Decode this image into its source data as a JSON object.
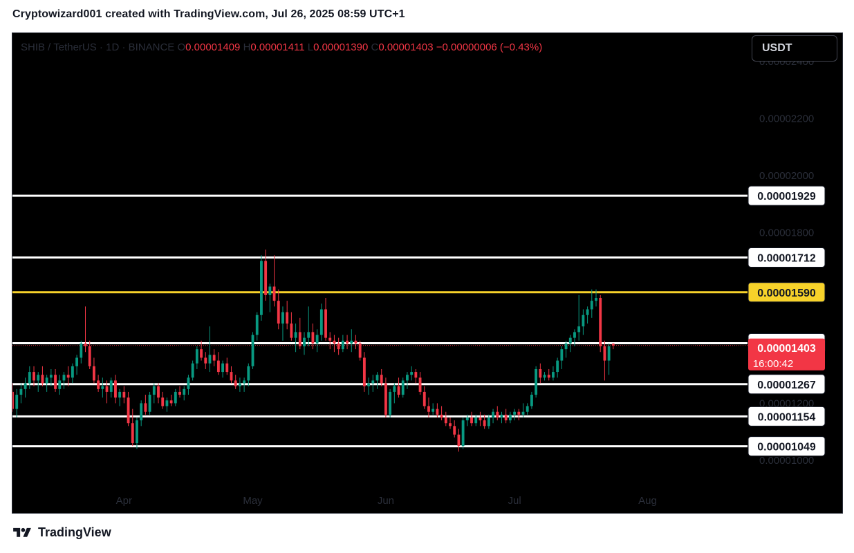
{
  "header": {
    "attribution": "Cryptowizard001 created with TradingView.com, Jul 26, 2025 08:59 UTC+1"
  },
  "legend": {
    "symbol": "SHIB / TetherUS · 1D · BINANCE",
    "o_label": "O",
    "o": "0.00001409",
    "h_label": "H",
    "h": "0.00001411",
    "l_label": "L",
    "l": "0.00001390",
    "c_label": "C",
    "c": "0.00001403",
    "change": "−0.00000006 (−0.43%)"
  },
  "currency_button": "USDT",
  "footer": {
    "brand": "TradingView"
  },
  "colors": {
    "background": "#000000",
    "up": "#089981",
    "down": "#f23645",
    "level": "#ffffff",
    "highlight_level": "#f7d22a",
    "price_tag": "#f23645"
  },
  "chart_data": {
    "type": "candlestick",
    "symbol": "SHIB / TetherUS",
    "interval": "1D",
    "exchange": "BINANCE",
    "y_scale_factor_1e8": true,
    "ylim": [
      8.1e-06,
      2.5e-05
    ],
    "y_ticks": [
      "0.00001000",
      "0.00001200",
      "0.00001400",
      "0.00001600",
      "0.00001800",
      "0.00002000",
      "0.00002200",
      "0.00002400"
    ],
    "x_ticks": [
      {
        "label": "Apr",
        "date": "2025-04-01"
      },
      {
        "label": "May",
        "date": "2025-05-01"
      },
      {
        "label": "Jun",
        "date": "2025-06-01"
      },
      {
        "label": "Jul",
        "date": "2025-07-01"
      },
      {
        "label": "Aug",
        "date": "2025-08-01"
      }
    ],
    "x_range": [
      "2025-03-06",
      "2025-08-23"
    ],
    "levels": [
      {
        "value": "0.00001929",
        "highlight": false
      },
      {
        "value": "0.00001712",
        "highlight": false
      },
      {
        "value": "0.00001590",
        "highlight": true
      },
      {
        "value": "0.00001411",
        "highlight": false
      },
      {
        "value": "0.00001267",
        "highlight": false
      },
      {
        "value": "0.00001154",
        "highlight": false
      },
      {
        "value": "0.00001049",
        "highlight": false
      }
    ],
    "current_price": "0.00001403",
    "countdown": "16:00:42",
    "start_date": "2025-03-06",
    "candles_scaled_1e8": [
      [
        1240,
        1270,
        1170,
        1180
      ],
      [
        1180,
        1250,
        1150,
        1230
      ],
      [
        1230,
        1270,
        1200,
        1250
      ],
      [
        1250,
        1290,
        1220,
        1270
      ],
      [
        1270,
        1330,
        1250,
        1310
      ],
      [
        1310,
        1330,
        1260,
        1280
      ],
      [
        1280,
        1310,
        1240,
        1300
      ],
      [
        1300,
        1330,
        1260,
        1270
      ],
      [
        1270,
        1300,
        1240,
        1290
      ],
      [
        1290,
        1320,
        1260,
        1300
      ],
      [
        1300,
        1320,
        1240,
        1250
      ],
      [
        1250,
        1300,
        1230,
        1280
      ],
      [
        1280,
        1310,
        1250,
        1300
      ],
      [
        1300,
        1330,
        1260,
        1290
      ],
      [
        1290,
        1340,
        1270,
        1330
      ],
      [
        1330,
        1370,
        1300,
        1360
      ],
      [
        1360,
        1420,
        1340,
        1410
      ],
      [
        1410,
        1540,
        1380,
        1400
      ],
      [
        1400,
        1420,
        1320,
        1330
      ],
      [
        1330,
        1360,
        1270,
        1280
      ],
      [
        1280,
        1300,
        1240,
        1250
      ],
      [
        1250,
        1290,
        1220,
        1260
      ],
      [
        1260,
        1280,
        1200,
        1240
      ],
      [
        1240,
        1290,
        1220,
        1280
      ],
      [
        1280,
        1300,
        1200,
        1220
      ],
      [
        1220,
        1250,
        1190,
        1240
      ],
      [
        1240,
        1260,
        1200,
        1220
      ],
      [
        1220,
        1240,
        1120,
        1130
      ],
      [
        1130,
        1180,
        1050,
        1060
      ],
      [
        1060,
        1150,
        1040,
        1140
      ],
      [
        1140,
        1210,
        1120,
        1200
      ],
      [
        1200,
        1230,
        1160,
        1170
      ],
      [
        1170,
        1240,
        1160,
        1230
      ],
      [
        1230,
        1270,
        1200,
        1260
      ],
      [
        1260,
        1270,
        1200,
        1220
      ],
      [
        1220,
        1240,
        1180,
        1190
      ],
      [
        1190,
        1220,
        1170,
        1210
      ],
      [
        1210,
        1230,
        1190,
        1200
      ],
      [
        1200,
        1250,
        1190,
        1240
      ],
      [
        1240,
        1260,
        1220,
        1230
      ],
      [
        1230,
        1260,
        1210,
        1250
      ],
      [
        1250,
        1300,
        1230,
        1290
      ],
      [
        1290,
        1350,
        1280,
        1340
      ],
      [
        1340,
        1400,
        1320,
        1390
      ],
      [
        1390,
        1420,
        1350,
        1360
      ],
      [
        1360,
        1380,
        1320,
        1340
      ],
      [
        1340,
        1470,
        1310,
        1370
      ],
      [
        1370,
        1390,
        1330,
        1350
      ],
      [
        1350,
        1380,
        1300,
        1310
      ],
      [
        1310,
        1350,
        1290,
        1340
      ],
      [
        1340,
        1360,
        1300,
        1310
      ],
      [
        1310,
        1330,
        1270,
        1280
      ],
      [
        1280,
        1300,
        1250,
        1260
      ],
      [
        1260,
        1290,
        1240,
        1270
      ],
      [
        1270,
        1290,
        1240,
        1280
      ],
      [
        1280,
        1340,
        1260,
        1330
      ],
      [
        1330,
        1450,
        1320,
        1440
      ],
      [
        1440,
        1520,
        1420,
        1510
      ],
      [
        1510,
        1720,
        1490,
        1700
      ],
      [
        1700,
        1740,
        1560,
        1580
      ],
      [
        1580,
        1620,
        1520,
        1610
      ],
      [
        1610,
        1720,
        1540,
        1560
      ],
      [
        1560,
        1600,
        1460,
        1480
      ],
      [
        1480,
        1540,
        1420,
        1520
      ],
      [
        1520,
        1560,
        1460,
        1480
      ],
      [
        1480,
        1520,
        1420,
        1430
      ],
      [
        1430,
        1480,
        1380,
        1450
      ],
      [
        1450,
        1500,
        1390,
        1400
      ],
      [
        1400,
        1450,
        1370,
        1430
      ],
      [
        1430,
        1540,
        1400,
        1450
      ],
      [
        1450,
        1480,
        1390,
        1410
      ],
      [
        1410,
        1460,
        1380,
        1440
      ],
      [
        1440,
        1550,
        1420,
        1530
      ],
      [
        1530,
        1570,
        1420,
        1430
      ],
      [
        1430,
        1450,
        1390,
        1420
      ],
      [
        1420,
        1440,
        1380,
        1410
      ],
      [
        1410,
        1430,
        1370,
        1390
      ],
      [
        1390,
        1440,
        1380,
        1420
      ],
      [
        1420,
        1440,
        1390,
        1410
      ],
      [
        1410,
        1460,
        1380,
        1420
      ],
      [
        1420,
        1440,
        1390,
        1410
      ],
      [
        1410,
        1420,
        1350,
        1360
      ],
      [
        1360,
        1380,
        1240,
        1260
      ],
      [
        1260,
        1290,
        1230,
        1270
      ],
      [
        1270,
        1300,
        1240,
        1280
      ],
      [
        1280,
        1310,
        1250,
        1300
      ],
      [
        1300,
        1320,
        1260,
        1270
      ],
      [
        1270,
        1290,
        1150,
        1160
      ],
      [
        1160,
        1250,
        1150,
        1240
      ],
      [
        1240,
        1270,
        1200,
        1260
      ],
      [
        1260,
        1290,
        1220,
        1230
      ],
      [
        1230,
        1290,
        1220,
        1280
      ],
      [
        1280,
        1310,
        1250,
        1300
      ],
      [
        1300,
        1330,
        1280,
        1310
      ],
      [
        1310,
        1320,
        1270,
        1290
      ],
      [
        1290,
        1310,
        1230,
        1240
      ],
      [
        1240,
        1260,
        1180,
        1190
      ],
      [
        1190,
        1220,
        1150,
        1170
      ],
      [
        1170,
        1200,
        1160,
        1180
      ],
      [
        1180,
        1200,
        1150,
        1160
      ],
      [
        1160,
        1190,
        1140,
        1150
      ],
      [
        1150,
        1170,
        1120,
        1130
      ],
      [
        1130,
        1150,
        1110,
        1120
      ],
      [
        1120,
        1140,
        1080,
        1090
      ],
      [
        1090,
        1110,
        1030,
        1050
      ],
      [
        1050,
        1150,
        1040,
        1140
      ],
      [
        1140,
        1160,
        1120,
        1150
      ],
      [
        1150,
        1170,
        1120,
        1130
      ],
      [
        1130,
        1160,
        1120,
        1150
      ],
      [
        1150,
        1170,
        1120,
        1140
      ],
      [
        1140,
        1160,
        1110,
        1120
      ],
      [
        1120,
        1160,
        1110,
        1150
      ],
      [
        1150,
        1180,
        1130,
        1170
      ],
      [
        1170,
        1190,
        1140,
        1150
      ],
      [
        1150,
        1170,
        1130,
        1160
      ],
      [
        1160,
        1180,
        1130,
        1140
      ],
      [
        1140,
        1170,
        1130,
        1160
      ],
      [
        1160,
        1180,
        1140,
        1170
      ],
      [
        1170,
        1180,
        1140,
        1160
      ],
      [
        1160,
        1200,
        1150,
        1170
      ],
      [
        1170,
        1200,
        1160,
        1190
      ],
      [
        1190,
        1240,
        1180,
        1230
      ],
      [
        1230,
        1330,
        1220,
        1320
      ],
      [
        1320,
        1340,
        1270,
        1290
      ],
      [
        1290,
        1310,
        1280,
        1300
      ],
      [
        1300,
        1320,
        1280,
        1290
      ],
      [
        1290,
        1330,
        1280,
        1310
      ],
      [
        1310,
        1360,
        1290,
        1350
      ],
      [
        1350,
        1400,
        1320,
        1390
      ],
      [
        1390,
        1420,
        1360,
        1410
      ],
      [
        1410,
        1440,
        1380,
        1430
      ],
      [
        1430,
        1460,
        1400,
        1450
      ],
      [
        1450,
        1580,
        1420,
        1470
      ],
      [
        1470,
        1530,
        1440,
        1510
      ],
      [
        1510,
        1540,
        1480,
        1530
      ],
      [
        1530,
        1600,
        1500,
        1560
      ],
      [
        1560,
        1600,
        1540,
        1570
      ],
      [
        1570,
        1580,
        1380,
        1400
      ],
      [
        1400,
        1420,
        1280,
        1350
      ],
      [
        1350,
        1410,
        1300,
        1400
      ],
      [
        1409,
        1411,
        1390,
        1403
      ]
    ]
  }
}
